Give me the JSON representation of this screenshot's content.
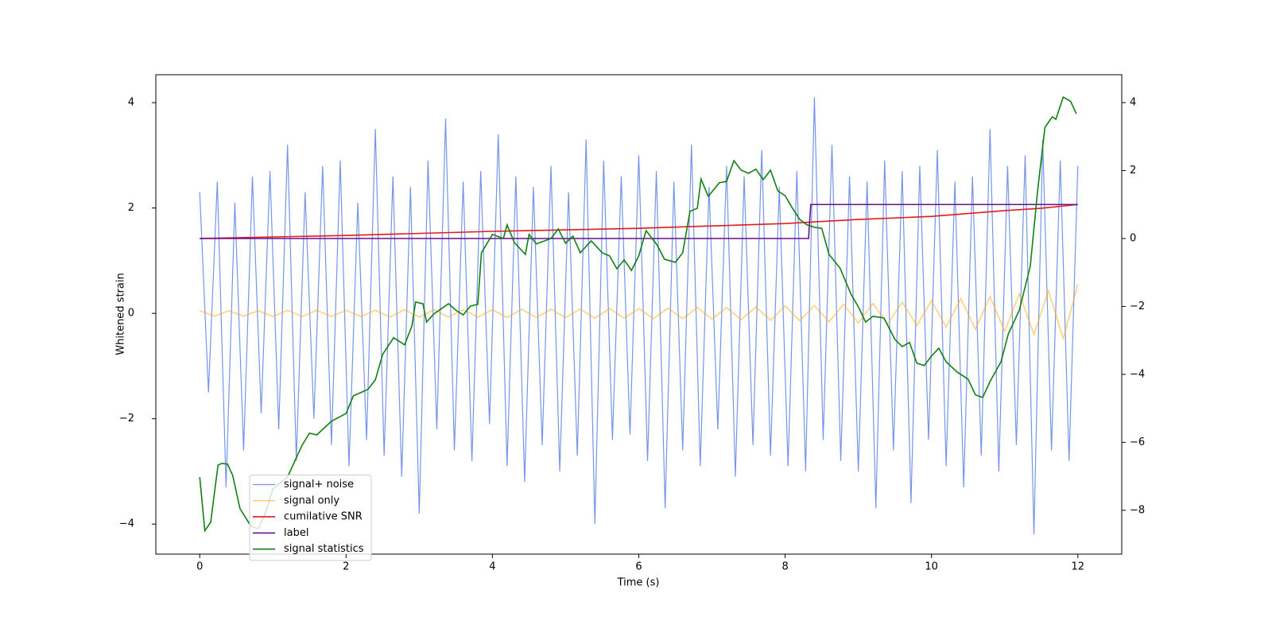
{
  "chart_data": {
    "type": "line",
    "xlabel": "Time (s)",
    "ylabel": "Whitened strain",
    "xlim": [
      -0.6,
      12.6
    ],
    "xticks": [
      0,
      2,
      4,
      6,
      8,
      10,
      12
    ],
    "ylim": [
      -4.57,
      4.53
    ],
    "yticks": [
      {
        "value": -4,
        "label": "−4"
      },
      {
        "value": -2,
        "label": "−2"
      },
      0,
      2,
      4
    ],
    "y2lim": [
      -9.29,
      4.82
    ],
    "y2ticks": [
      {
        "value": -8,
        "label": "−8"
      },
      {
        "value": -6,
        "label": "−6"
      },
      {
        "value": -4,
        "label": "−4"
      },
      {
        "value": -2,
        "label": "−2"
      },
      0,
      2,
      4
    ],
    "legend": "lower left",
    "series": [
      {
        "name": "signal+ noise",
        "color": "#7795e8",
        "x": [
          0,
          0.12,
          0.24,
          0.36,
          0.48,
          0.6,
          0.72,
          0.84,
          0.96,
          1.08,
          1.2,
          1.32,
          1.44,
          1.56,
          1.68,
          1.8,
          1.92,
          2.04,
          2.16,
          2.28,
          2.4,
          2.52,
          2.64,
          2.76,
          2.88,
          3,
          3.12,
          3.24,
          3.36,
          3.48,
          3.6,
          3.72,
          3.84,
          3.96,
          4.08,
          4.2,
          4.32,
          4.44,
          4.56,
          4.68,
          4.8,
          4.92,
          5.04,
          5.16,
          5.28,
          5.4,
          5.52,
          5.64,
          5.76,
          5.88,
          6,
          6.12,
          6.24,
          6.36,
          6.48,
          6.6,
          6.72,
          6.84,
          6.96,
          7.08,
          7.2,
          7.32,
          7.44,
          7.56,
          7.68,
          7.8,
          7.92,
          8.04,
          8.16,
          8.28,
          8.4,
          8.52,
          8.64,
          8.76,
          8.88,
          9,
          9.12,
          9.24,
          9.36,
          9.48,
          9.6,
          9.72,
          9.84,
          9.96,
          10.08,
          10.2,
          10.32,
          10.44,
          10.56,
          10.68,
          10.8,
          10.92,
          11.04,
          11.16,
          11.28,
          11.4,
          11.52,
          11.64,
          11.76,
          11.88,
          12
        ],
        "values": [
          2.3,
          -1.5,
          2.5,
          -3.3,
          2.1,
          -2.6,
          2.6,
          -1.9,
          2.7,
          -2.2,
          3.2,
          -2.8,
          2.3,
          -2.0,
          2.8,
          -2.5,
          2.9,
          -2.9,
          2.1,
          -2.4,
          3.5,
          -2.7,
          2.6,
          -3.1,
          2.4,
          -3.8,
          2.9,
          -2.2,
          3.7,
          -2.6,
          2.5,
          -2.8,
          2.7,
          -2.1,
          3.4,
          -2.9,
          2.6,
          -3.2,
          2.4,
          -2.5,
          2.8,
          -3.0,
          2.3,
          -2.7,
          3.3,
          -4.0,
          2.9,
          -2.4,
          2.6,
          -2.3,
          3.0,
          -2.8,
          2.7,
          -3.7,
          2.5,
          -2.6,
          3.2,
          -2.9,
          2.4,
          -2.2,
          2.8,
          -3.1,
          2.6,
          -2.5,
          3.1,
          -2.7,
          2.4,
          -2.9,
          2.7,
          -3.0,
          4.1,
          -2.4,
          3.2,
          -2.8,
          2.6,
          -3.0,
          2.5,
          -3.7,
          2.9,
          -2.6,
          2.7,
          -3.6,
          2.8,
          -2.4,
          3.1,
          -2.9,
          2.5,
          -3.3,
          2.6,
          -2.7,
          3.5,
          -3.0,
          2.8,
          -2.5,
          3.0,
          -4.2,
          3.3,
          -2.6,
          2.9,
          -2.8,
          2.8
        ]
      },
      {
        "name": "signal only",
        "color": "#ffa500",
        "x": [
          0,
          0.2,
          0.4,
          0.6,
          0.8,
          1,
          1.2,
          1.4,
          1.6,
          1.8,
          2,
          2.2,
          2.4,
          2.6,
          2.8,
          3,
          3.2,
          3.4,
          3.6,
          3.8,
          4,
          4.2,
          4.4,
          4.6,
          4.8,
          5,
          5.2,
          5.4,
          5.6,
          5.8,
          6,
          6.2,
          6.4,
          6.6,
          6.8,
          7,
          7.2,
          7.4,
          7.6,
          7.8,
          8,
          8.2,
          8.4,
          8.6,
          8.8,
          9,
          9.2,
          9.4,
          9.6,
          9.8,
          10,
          10.2,
          10.4,
          10.6,
          10.8,
          11,
          11.2,
          11.4,
          11.6,
          11.8,
          12
        ],
        "values": [
          0.05,
          -0.05,
          0.05,
          -0.05,
          0.05,
          -0.06,
          0.06,
          -0.06,
          0.06,
          -0.06,
          0.06,
          -0.06,
          0.06,
          -0.07,
          0.07,
          -0.07,
          0.07,
          -0.07,
          0.07,
          -0.07,
          0.07,
          -0.08,
          0.08,
          -0.08,
          0.08,
          -0.08,
          0.08,
          -0.09,
          0.09,
          -0.09,
          0.09,
          -0.1,
          0.1,
          -0.1,
          0.11,
          -0.11,
          0.11,
          -0.12,
          0.12,
          -0.13,
          0.14,
          -0.14,
          0.15,
          -0.16,
          0.17,
          -0.18,
          0.19,
          -0.2,
          0.21,
          -0.23,
          0.24,
          -0.26,
          0.28,
          -0.3,
          0.32,
          -0.34,
          0.37,
          -0.4,
          0.43,
          -0.48,
          0.55
        ]
      },
      {
        "name": "cumilative SNR",
        "color": "#e41a1c",
        "axis": "y2",
        "x": [
          0,
          2,
          4,
          6,
          8,
          9,
          10,
          11,
          11.5,
          12
        ],
        "values": [
          0.0,
          0.09,
          0.21,
          0.3,
          0.44,
          0.56,
          0.65,
          0.82,
          0.89,
          1.0
        ]
      },
      {
        "name": "label",
        "color": "#6a0f8e",
        "axis": "y2",
        "x": [
          0,
          8.32,
          8.35,
          12
        ],
        "values": [
          0,
          0,
          1,
          1
        ]
      },
      {
        "name": "signal statistics",
        "color": "#118011",
        "axis": "y2",
        "x": [
          0,
          0.07,
          0.15,
          0.25,
          0.3,
          0.38,
          0.45,
          0.55,
          0.7,
          0.8,
          0.9,
          1.0,
          1.2,
          1.4,
          1.5,
          1.6,
          1.8,
          2.0,
          2.1,
          2.3,
          2.4,
          2.5,
          2.65,
          2.8,
          2.9,
          2.95,
          3.05,
          3.1,
          3.2,
          3.4,
          3.5,
          3.6,
          3.7,
          3.8,
          3.85,
          4.0,
          4.15,
          4.2,
          4.3,
          4.45,
          4.5,
          4.6,
          4.8,
          4.9,
          5.0,
          5.1,
          5.2,
          5.35,
          5.5,
          5.6,
          5.7,
          5.8,
          5.9,
          6.0,
          6.1,
          6.25,
          6.35,
          6.5,
          6.6,
          6.7,
          6.8,
          6.85,
          6.95,
          7.1,
          7.2,
          7.3,
          7.4,
          7.5,
          7.6,
          7.7,
          7.8,
          7.9,
          8.0,
          8.1,
          8.2,
          8.3,
          8.4,
          8.5,
          8.6,
          8.75,
          8.9,
          9.0,
          9.1,
          9.2,
          9.35,
          9.5,
          9.6,
          9.7,
          9.8,
          9.9,
          10.0,
          10.1,
          10.2,
          10.35,
          10.5,
          10.6,
          10.7,
          10.8,
          10.95,
          11.05,
          11.2,
          11.35,
          11.45,
          11.55,
          11.65,
          11.7,
          11.8,
          11.9,
          11.98
        ],
        "values": [
          -7.02,
          -8.6,
          -8.35,
          -6.67,
          -6.62,
          -6.64,
          -6.97,
          -7.95,
          -8.47,
          -8.54,
          -8.07,
          -7.37,
          -7.02,
          -6.08,
          -5.73,
          -5.78,
          -5.38,
          -5.15,
          -4.63,
          -4.44,
          -4.16,
          -3.41,
          -2.92,
          -3.13,
          -2.57,
          -1.87,
          -1.92,
          -2.46,
          -2.22,
          -1.92,
          -2.11,
          -2.25,
          -1.99,
          -1.94,
          -0.42,
          0.12,
          0.0,
          0.4,
          -0.12,
          -0.47,
          0.12,
          -0.16,
          0.0,
          0.28,
          -0.14,
          0.07,
          -0.42,
          -0.07,
          -0.42,
          -0.51,
          -0.89,
          -0.63,
          -0.94,
          -0.51,
          0.23,
          -0.19,
          -0.61,
          -0.7,
          -0.42,
          0.8,
          0.89,
          1.75,
          1.24,
          1.64,
          1.68,
          2.29,
          2.01,
          1.92,
          2.04,
          1.73,
          2.01,
          1.4,
          1.26,
          0.89,
          0.56,
          0.4,
          0.33,
          0.3,
          -0.47,
          -0.87,
          -1.64,
          -2.01,
          -2.46,
          -2.29,
          -2.34,
          -2.97,
          -3.18,
          -3.06,
          -3.67,
          -3.74,
          -3.46,
          -3.23,
          -3.63,
          -3.93,
          -4.14,
          -4.6,
          -4.68,
          -4.21,
          -3.63,
          -2.81,
          -2.11,
          -0.82,
          1.4,
          3.27,
          3.58,
          3.51,
          4.16,
          4.04,
          3.67
        ]
      }
    ]
  }
}
